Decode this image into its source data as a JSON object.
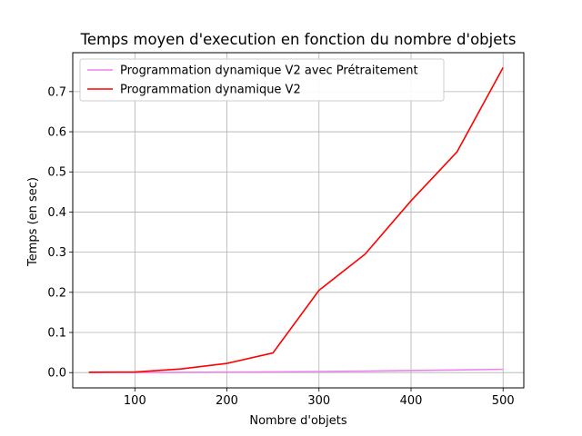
{
  "chart_data": {
    "type": "line",
    "title": "Temps moyen d'execution en fonction du nombre d'objets",
    "xlabel": "Nombre d'objets",
    "ylabel": "Temps (en sec)",
    "xlim": [
      32.5,
      522.5
    ],
    "ylim": [
      -0.038,
      0.797
    ],
    "xticks": [
      100,
      200,
      300,
      400,
      500
    ],
    "yticks": [
      0.0,
      0.1,
      0.2,
      0.3,
      0.4,
      0.5,
      0.6,
      0.7
    ],
    "grid": true,
    "legend_position": "top-left",
    "x": [
      50,
      100,
      150,
      200,
      250,
      300,
      350,
      400,
      450,
      500
    ],
    "series": [
      {
        "name": "Programmation dynamique V2 avec Prétraitement",
        "color": "#ee82ee",
        "values": [
          0.0002,
          0.0003,
          0.0006,
          0.0012,
          0.0018,
          0.0027,
          0.0038,
          0.0052,
          0.0066,
          0.0081
        ]
      },
      {
        "name": "Programmation dynamique V2",
        "color": "#ff0000",
        "values": [
          0.001,
          0.0015,
          0.009,
          0.023,
          0.049,
          0.205,
          0.295,
          0.428,
          0.55,
          0.76
        ]
      }
    ]
  }
}
